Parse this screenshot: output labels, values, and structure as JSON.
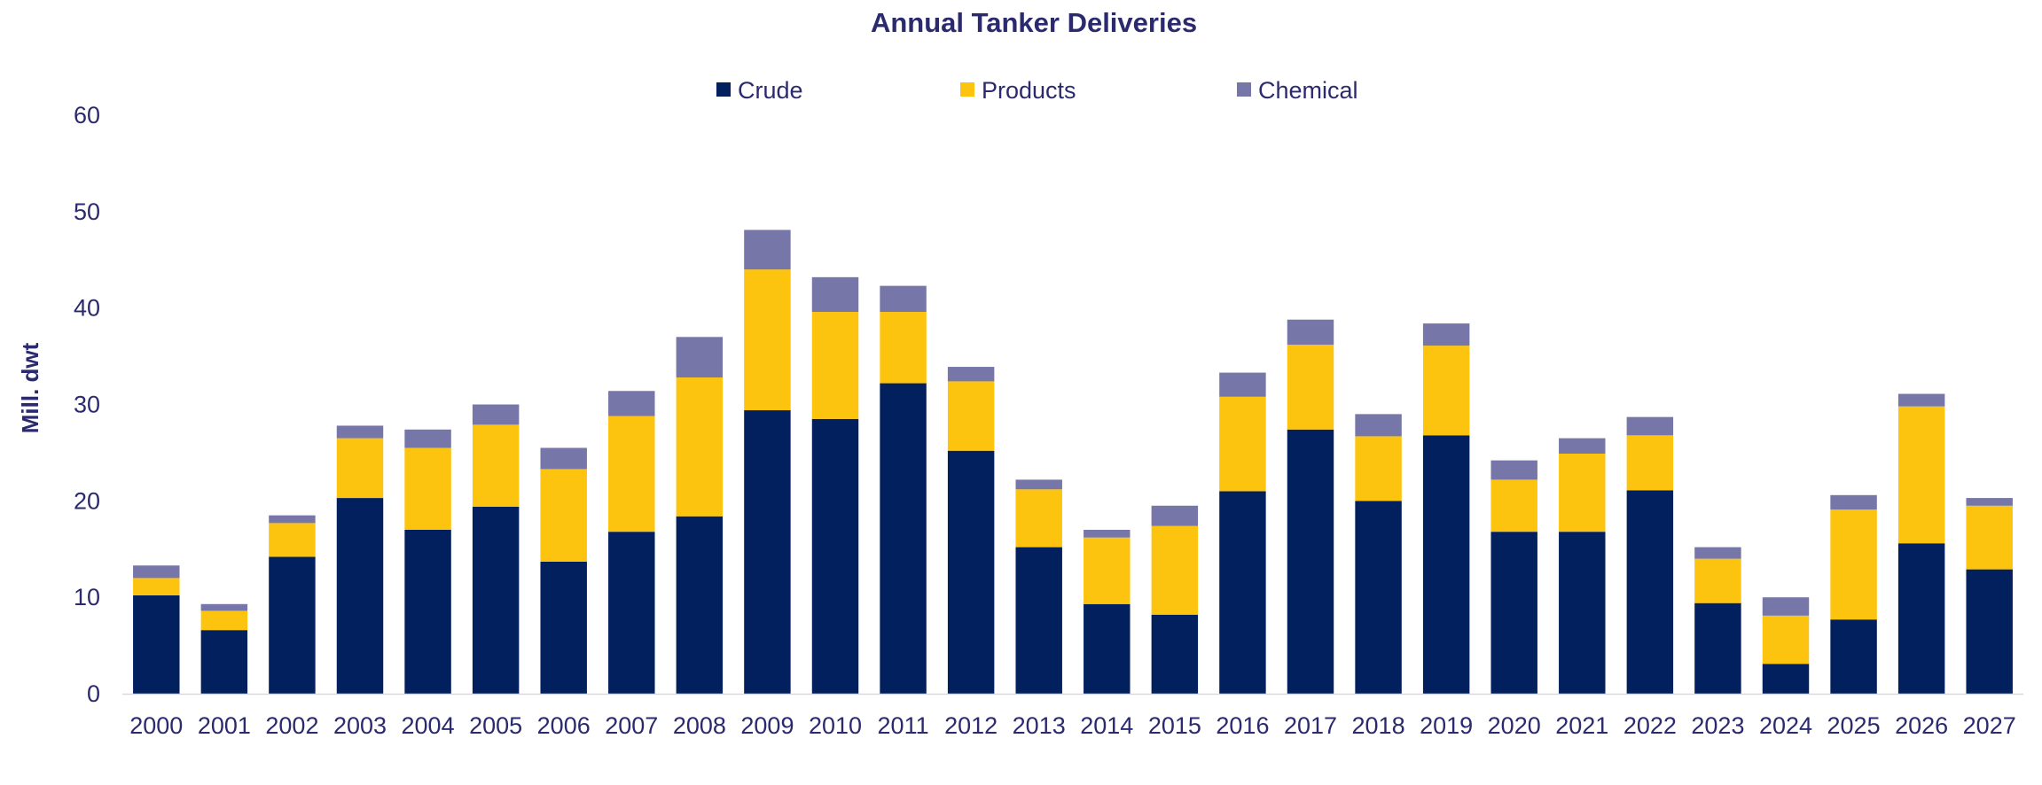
{
  "chart_data": {
    "type": "bar",
    "stacked": true,
    "title": "Annual Tanker Deliveries",
    "xlabel": "",
    "ylabel": "Mill. dwt",
    "ylim": [
      0,
      60
    ],
    "yticks": [
      "0",
      "10",
      "20",
      "30",
      "40",
      "50",
      "60"
    ],
    "grid": false,
    "legend_position": "top",
    "categories": [
      "2000",
      "2001",
      "2002",
      "2003",
      "2004",
      "2005",
      "2006",
      "2007",
      "2008",
      "2009",
      "2010",
      "2011",
      "2012",
      "2013",
      "2014",
      "2015",
      "2016",
      "2017",
      "2018",
      "2019",
      "2020",
      "2021",
      "2022",
      "2023",
      "2024",
      "2025",
      "2026",
      "2027"
    ],
    "series": [
      {
        "name": "Crude",
        "color": "#03205e",
        "values": [
          10.2,
          6.6,
          14.2,
          20.3,
          17.0,
          19.4,
          13.7,
          16.8,
          18.4,
          29.4,
          28.5,
          32.2,
          25.2,
          15.2,
          9.3,
          8.2,
          21.0,
          27.4,
          20.0,
          26.8,
          16.8,
          16.8,
          21.1,
          9.4,
          3.1,
          7.7,
          15.6,
          12.9
        ]
      },
      {
        "name": "Products",
        "color": "#fcc30f",
        "values": [
          1.8,
          2.0,
          3.5,
          6.2,
          8.5,
          8.5,
          9.6,
          12.0,
          14.4,
          14.6,
          11.1,
          7.4,
          7.2,
          6.0,
          6.9,
          9.2,
          9.8,
          8.8,
          6.7,
          9.3,
          5.4,
          8.1,
          5.7,
          4.6,
          5.0,
          11.4,
          14.2,
          6.6
        ]
      },
      {
        "name": "Chemical",
        "color": "#7677a8",
        "values": [
          1.3,
          0.7,
          0.8,
          1.3,
          1.9,
          2.1,
          2.2,
          2.6,
          4.2,
          4.1,
          3.6,
          2.7,
          1.5,
          1.0,
          0.8,
          2.1,
          2.5,
          2.6,
          2.3,
          2.3,
          2.0,
          1.6,
          1.9,
          1.2,
          1.9,
          1.5,
          1.3,
          0.8
        ]
      }
    ]
  }
}
